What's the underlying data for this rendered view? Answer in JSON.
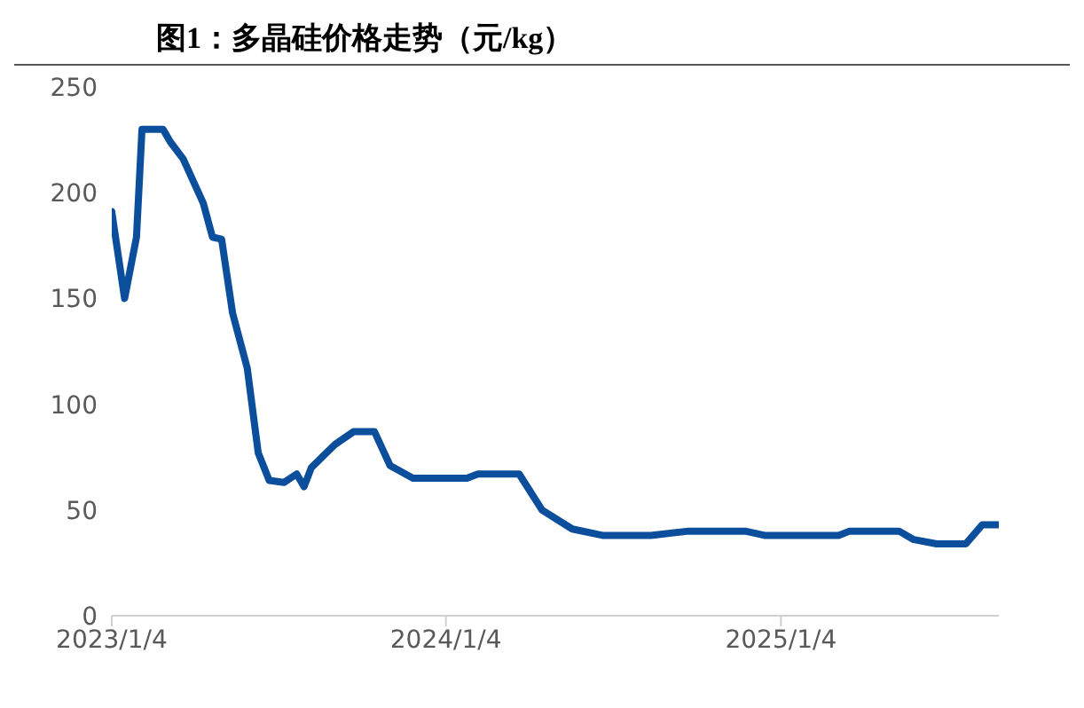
{
  "chart_data": {
    "type": "line",
    "title": "图1：多晶硅价格走势（元/kg）",
    "x": [
      "2023-01-04",
      "2023-01-18",
      "2023-01-31",
      "2023-02-06",
      "2023-03-01",
      "2023-03-09",
      "2023-03-23",
      "2023-04-14",
      "2023-04-24",
      "2023-05-04",
      "2023-05-16",
      "2023-06-01",
      "2023-06-13",
      "2023-06-25",
      "2023-07-11",
      "2023-07-25",
      "2023-08-02",
      "2023-08-10",
      "2023-08-24",
      "2023-09-05",
      "2023-09-25",
      "2023-10-18",
      "2023-11-04",
      "2023-11-29",
      "2024-01-27",
      "2024-02-08",
      "2024-03-24",
      "2024-04-18",
      "2024-05-21",
      "2024-06-23",
      "2024-08-15",
      "2024-09-25",
      "2024-11-26",
      "2024-12-17",
      "2025-03-08",
      "2025-03-20",
      "2025-05-13",
      "2025-05-29",
      "2025-06-23",
      "2025-07-25",
      "2025-08-12",
      "2025-08-30"
    ],
    "series": [
      {
        "color": "#0b4f9c",
        "values": [
          191,
          150,
          179,
          230,
          230,
          224,
          216,
          195,
          179,
          178,
          143,
          117,
          77,
          64,
          63,
          67,
          61,
          70,
          76,
          81,
          87,
          87,
          71,
          65,
          65,
          67,
          67,
          50,
          41,
          38,
          38,
          40,
          40,
          38,
          38,
          40,
          40,
          36,
          34,
          34,
          43,
          43
        ]
      }
    ],
    "xlim": [
      "2023-01-04",
      "2025-08-30"
    ],
    "xticks": [
      {
        "value": "2023-01-04",
        "label": "2023/1/4"
      },
      {
        "value": "2024-01-04",
        "label": "2024/1/4"
      },
      {
        "value": "2025-01-04",
        "label": "2025/1/4"
      }
    ],
    "ylim": [
      0,
      250
    ],
    "yticks": [
      0,
      50,
      100,
      150,
      200,
      250
    ],
    "grid": false,
    "legend": false,
    "marker": "none",
    "line_style": "solid"
  }
}
